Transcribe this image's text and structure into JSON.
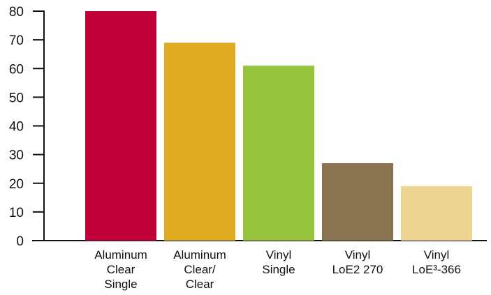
{
  "chart_data": {
    "type": "bar",
    "title": "",
    "xlabel": "",
    "ylabel": "",
    "ylim": [
      0,
      80
    ],
    "yticks": [
      0,
      10,
      20,
      30,
      40,
      50,
      60,
      70,
      80
    ],
    "grid": false,
    "categories": [
      [
        "Aluminum",
        "Clear",
        "Single"
      ],
      [
        "Aluminum",
        "Clear/",
        "Clear"
      ],
      [
        "Vinyl",
        "Single"
      ],
      [
        "Vinyl",
        "LoE2 270"
      ],
      [
        "Vinyl",
        "LoE³-366"
      ]
    ],
    "values": [
      80,
      69,
      61,
      27,
      19
    ],
    "colors": [
      "#c0003a",
      "#e0ac24",
      "#96c43e",
      "#8a7350",
      "#efd594"
    ]
  }
}
